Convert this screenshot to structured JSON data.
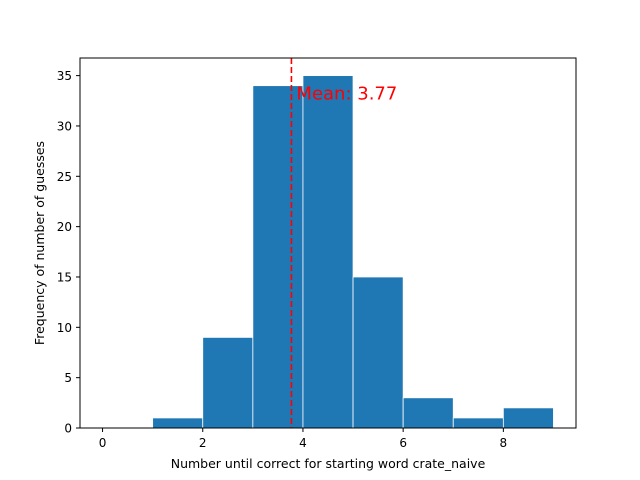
{
  "chart_data": {
    "type": "bar",
    "subtype": "histogram",
    "bins": [
      {
        "x0": 0,
        "x1": 1,
        "value": 0
      },
      {
        "x0": 1,
        "x1": 2,
        "value": 1
      },
      {
        "x0": 2,
        "x1": 3,
        "value": 9
      },
      {
        "x0": 3,
        "x1": 4,
        "value": 34
      },
      {
        "x0": 4,
        "x1": 5,
        "value": 35
      },
      {
        "x0": 5,
        "x1": 6,
        "value": 15
      },
      {
        "x0": 6,
        "x1": 7,
        "value": 3
      },
      {
        "x0": 7,
        "x1": 8,
        "value": 1
      },
      {
        "x0": 8,
        "x1": 9,
        "value": 2
      }
    ],
    "title": "",
    "xlabel": "Number until correct for starting word crate_naive",
    "ylabel": "Frequency of number of guesses",
    "xlim": [
      -0.45,
      9.45
    ],
    "ylim": [
      0,
      36.75
    ],
    "xticks": [
      0,
      2,
      4,
      6,
      8
    ],
    "yticks": [
      0,
      5,
      10,
      15,
      20,
      25,
      30,
      35
    ],
    "grid": false,
    "bar_color": "#1f77b4",
    "bar_edge_color": "#ffffff",
    "mean_line": {
      "value": 3.77,
      "color": "#ff0000",
      "style": "dashed"
    },
    "annotation": {
      "text": "Mean: 3.77",
      "color": "#ff0000",
      "x": 3.87,
      "y": 33.2
    }
  }
}
